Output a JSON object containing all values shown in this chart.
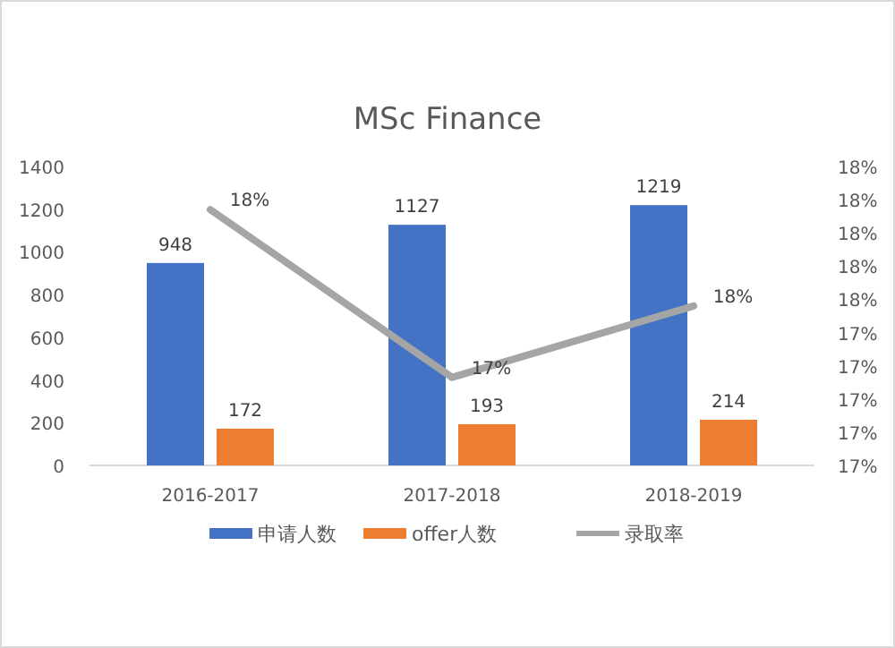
{
  "chart_data": {
    "type": "bar",
    "title": "MSc Finance",
    "categories": [
      "2016-2017",
      "2017-2018",
      "2018-2019"
    ],
    "series": [
      {
        "name": "申请人数",
        "color": "#4472c4",
        "values": [
          948,
          1127,
          1219
        ],
        "data_labels": true
      },
      {
        "name": "offer人数",
        "color": "#ed7d31",
        "values": [
          172,
          193,
          214
        ],
        "data_labels": true
      },
      {
        "name": "录取率",
        "type": "line",
        "axis": "y2",
        "color": "#a5a5a5",
        "values": [
          18.14,
          17.13,
          17.56
        ],
        "value_labels": [
          "18%",
          "17%",
          "18%"
        ]
      }
    ],
    "ylim": [
      0,
      1400
    ],
    "yticks": [
      0,
      200,
      400,
      600,
      800,
      1000,
      1200,
      1400
    ],
    "y2lim": [
      16.6,
      18.4
    ],
    "y2ticks": [
      {
        "value": 16.6,
        "label": "17%"
      },
      {
        "value": 16.8,
        "label": "17%"
      },
      {
        "value": 17.0,
        "label": "17%"
      },
      {
        "value": 17.2,
        "label": "17%"
      },
      {
        "value": 17.4,
        "label": "17%"
      },
      {
        "value": 17.6,
        "label": "18%"
      },
      {
        "value": 17.8,
        "label": "18%"
      },
      {
        "value": 18.0,
        "label": "18%"
      },
      {
        "value": 18.2,
        "label": "18%"
      },
      {
        "value": 18.4,
        "label": "18%"
      }
    ],
    "grid": false,
    "legend": "bottom",
    "marker": "none",
    "line_style": "solid"
  }
}
